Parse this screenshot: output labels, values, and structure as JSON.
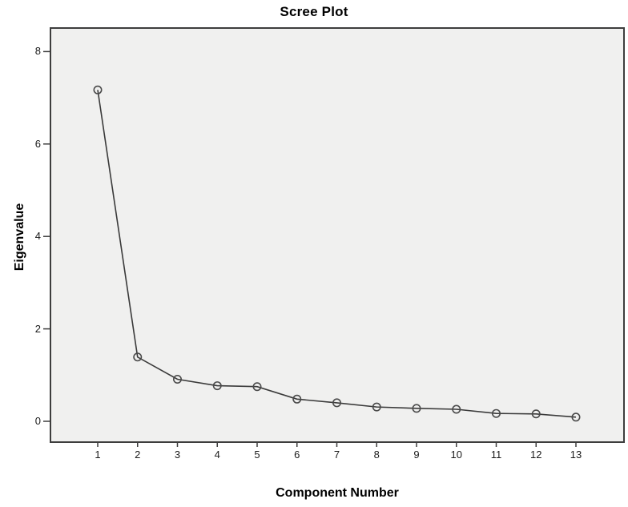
{
  "chart_data": {
    "type": "line",
    "title": "Scree Plot",
    "xlabel": "Component Number",
    "ylabel": "Eigenvalue",
    "categories": [
      1,
      2,
      3,
      4,
      5,
      6,
      7,
      8,
      9,
      10,
      11,
      12,
      13
    ],
    "series": [
      {
        "name": "Eigenvalue",
        "values": [
          7.17,
          1.39,
          0.91,
          0.77,
          0.75,
          0.48,
          0.4,
          0.31,
          0.28,
          0.26,
          0.17,
          0.16,
          0.09
        ]
      }
    ],
    "y_ticks": [
      0,
      2,
      4,
      6,
      8
    ],
    "ylim": [
      0,
      8
    ],
    "xlim": [
      1,
      13
    ],
    "grid": false,
    "legend": "none",
    "marker": "open-circle",
    "colors": {
      "line": "#3a3a3a",
      "marker_stroke": "#4a4a4a",
      "plot_background": "#f0f0ef",
      "frame": "#3d3d3d",
      "text": "#000000",
      "page_background": "#ffffff"
    }
  }
}
